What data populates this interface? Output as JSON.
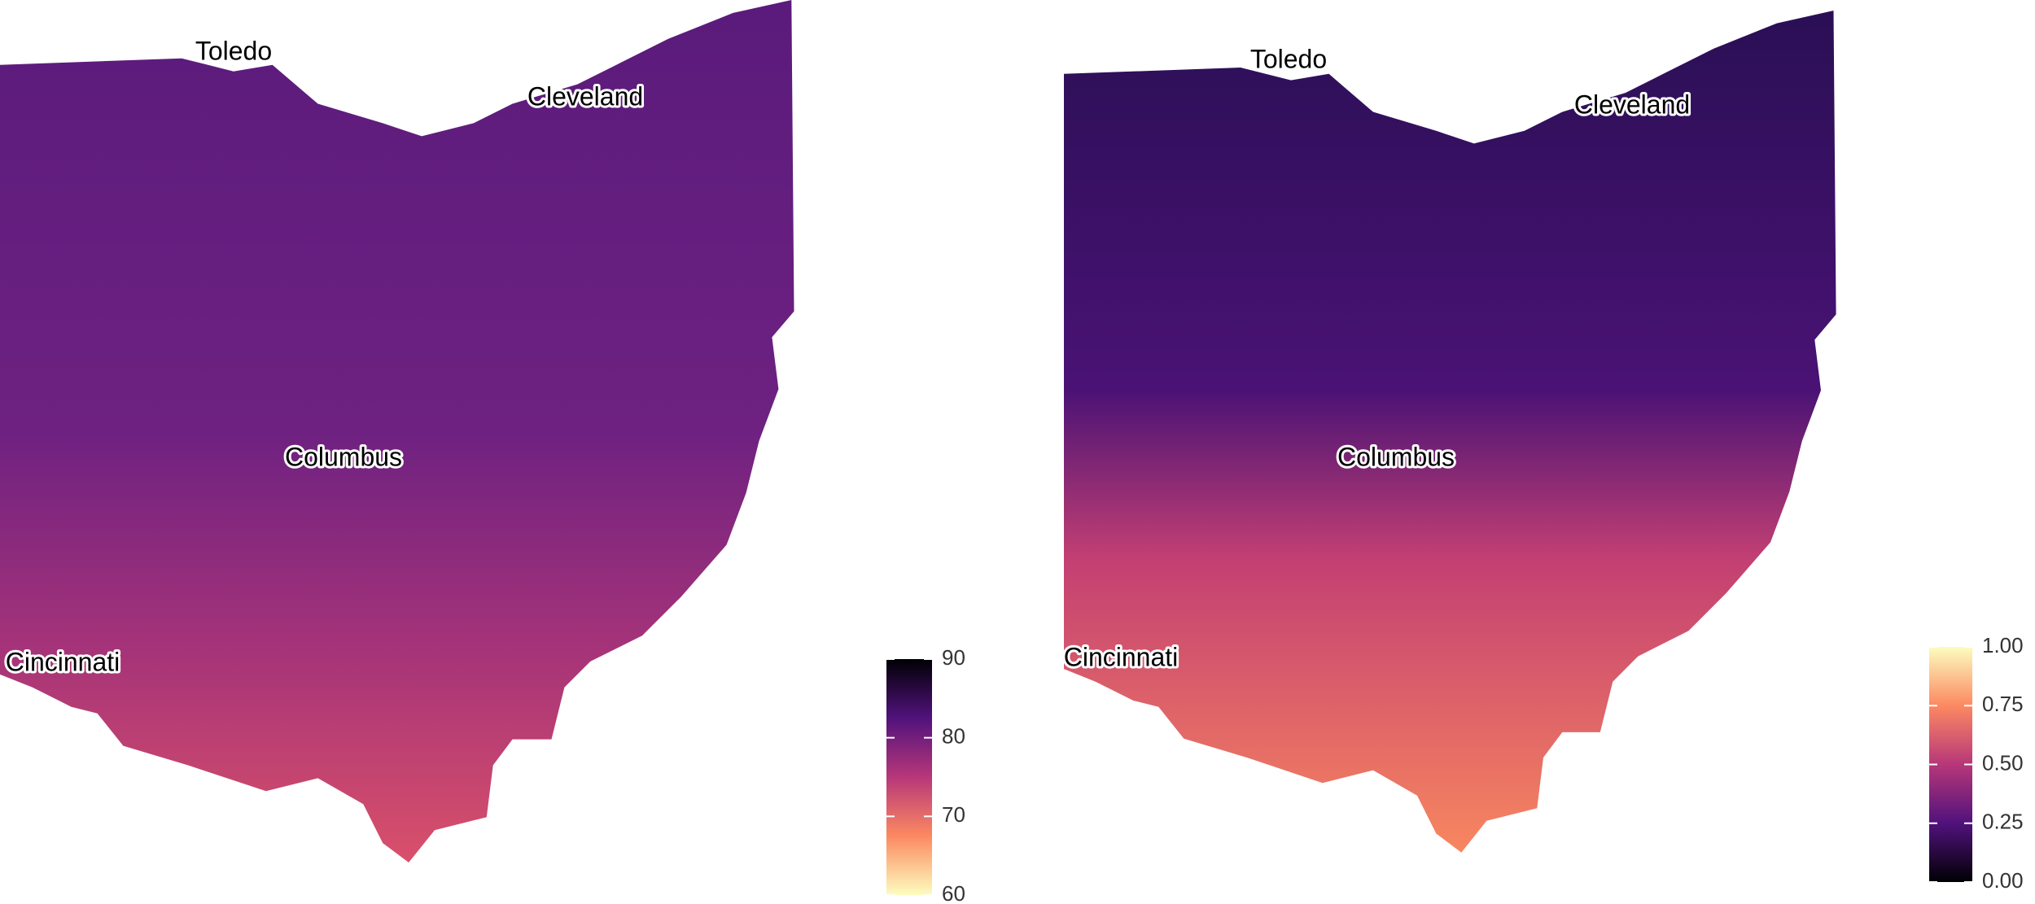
{
  "maps": [
    {
      "cities": [
        "Toledo",
        "Cleveland",
        "Columbus",
        "Cincinnati"
      ],
      "colorbar": {
        "lim": [
          60,
          90
        ],
        "ticks": [
          60,
          70,
          80,
          90
        ],
        "colors": [
          "#fcfdbf",
          "#fc8961",
          "#b73779",
          "#51127c",
          "#000004"
        ]
      }
    },
    {
      "cities": [
        "Toledo",
        "Cleveland",
        "Columbus",
        "Cincinnati"
      ],
      "colorbar": {
        "lim": [
          0,
          1
        ],
        "ticks": [
          {
            "value": 0,
            "label": "0.00"
          },
          {
            "value": 0.25,
            "label": "0.25"
          },
          {
            "value": 0.5,
            "label": "0.50"
          },
          {
            "value": 0.75,
            "label": "0.75"
          },
          {
            "value": 1,
            "label": "1.00"
          }
        ],
        "colors": [
          "#000004",
          "#51127c",
          "#b73779",
          "#fc8961",
          "#fcfdbf"
        ]
      }
    }
  ]
}
